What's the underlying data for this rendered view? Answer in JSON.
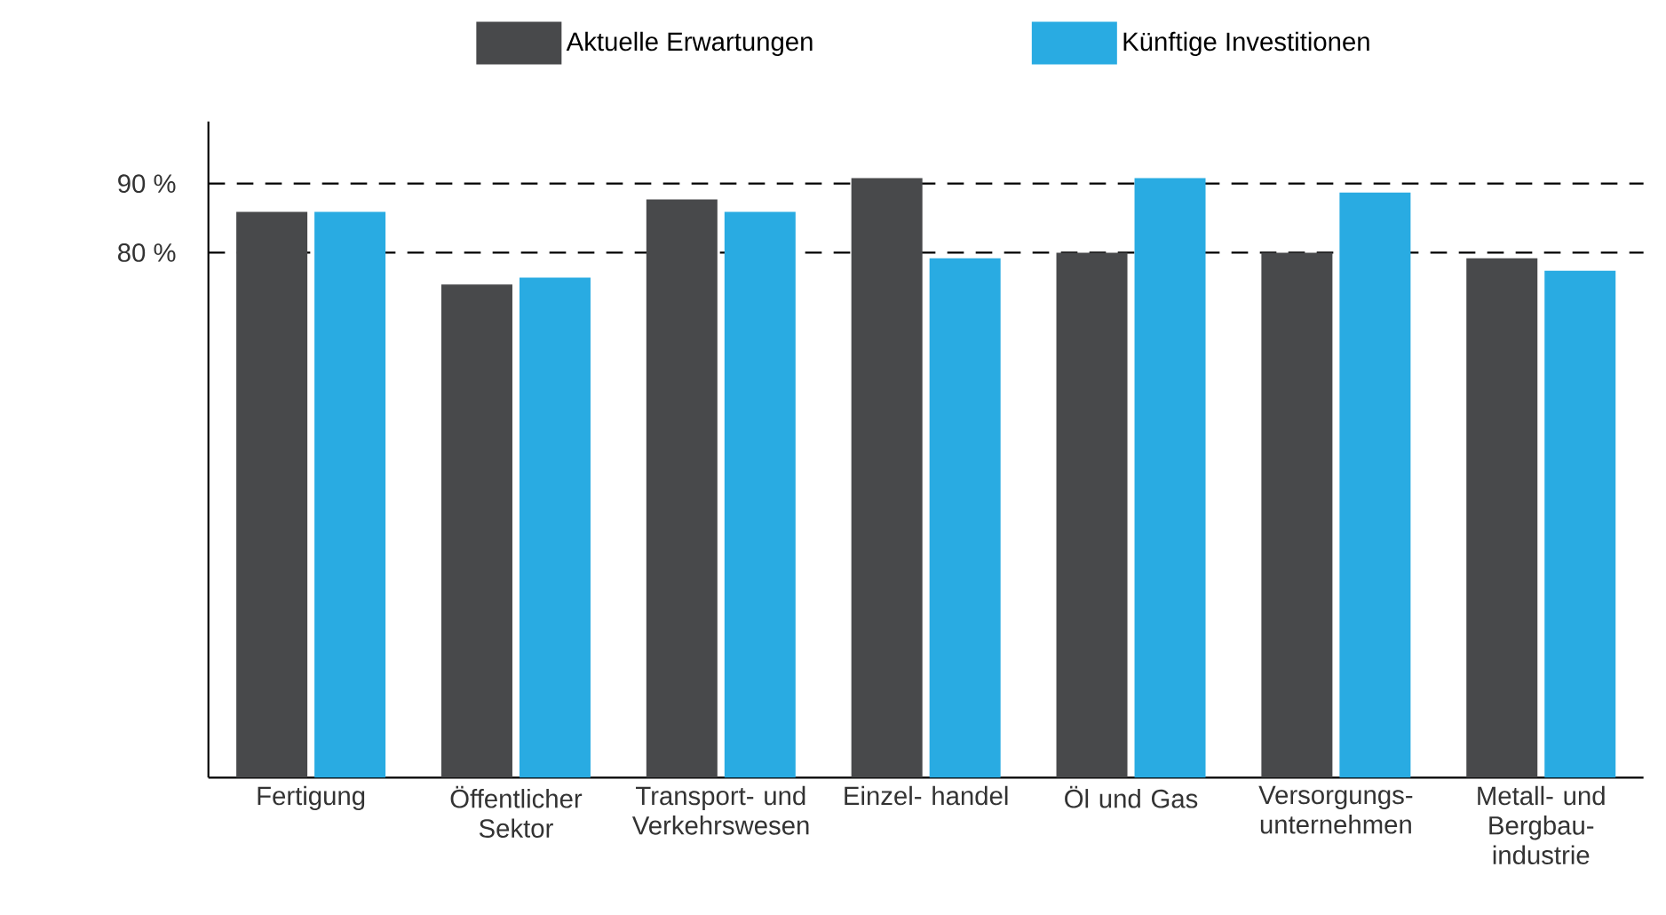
{
  "chart_data": {
    "type": "bar",
    "categories": [
      "Fertigung",
      "Öffentlicher Sektor",
      "Transport- und Verkehrswesen",
      "Einzel- handel",
      "Öl und Gas",
      "Versorgungs- unternehmen",
      "Metall- und Bergbau- industrie"
    ],
    "series": [
      {
        "name": "Aktuelle Erwartungen",
        "color": "#48494b",
        "values": [
          85.9,
          75.4,
          87.7,
          90.8,
          80.0,
          80.0,
          79.2
        ]
      },
      {
        "name": "Künftige Investitionen",
        "color": "#29abe2",
        "values": [
          85.9,
          76.4,
          85.9,
          79.2,
          90.8,
          88.7,
          77.4
        ]
      }
    ],
    "ylim": [
      4,
      99
    ],
    "yticks": [
      {
        "value": 80,
        "label": "80 %"
      },
      {
        "value": 90,
        "label": "90 %"
      }
    ],
    "grid": "y",
    "legend": "top"
  }
}
